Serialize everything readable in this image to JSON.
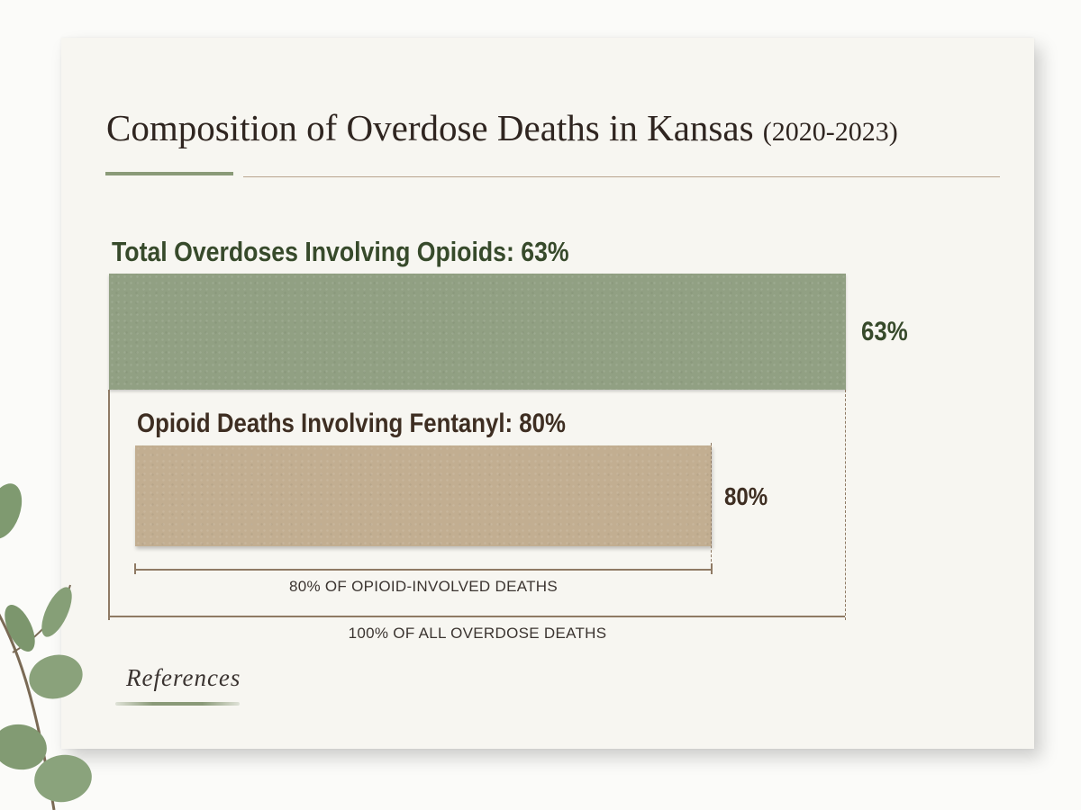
{
  "title": "Composition of Overdose Deaths in Kansas",
  "title_years": "(2020-2023)",
  "references_label": "References",
  "colors": {
    "opioid_bar": "#91a083",
    "fentanyl_bar": "#c2ae91",
    "accent": "#8a9a78",
    "rule": "#8f7a64"
  },
  "icons": {
    "decoration": "eucalyptus-sprig-icon"
  },
  "chart_data": {
    "type": "bar",
    "orientation": "horizontal",
    "title": "Composition of Overdose Deaths in Kansas (2020-2023)",
    "bars": [
      {
        "label": "Total Overdoses Involving Opioids: 63%",
        "value": 63,
        "value_label": "63%",
        "base_label": "100% OF ALL OVERDOSE DEATHS"
      },
      {
        "label": "Opioid Deaths Involving Fentanyl: 80%",
        "value": 80,
        "value_label": "80%",
        "base_label": "80% OF OPIOID-INVOLVED DEATHS"
      }
    ],
    "unit": "%",
    "grid": false,
    "legend": "none"
  }
}
